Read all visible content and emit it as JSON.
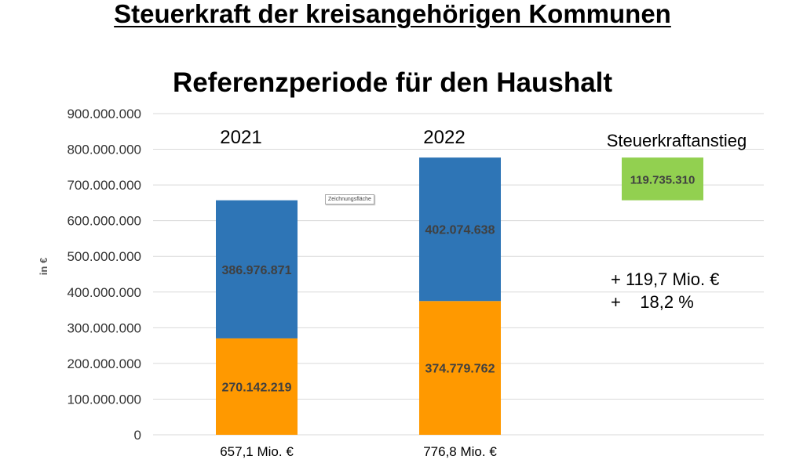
{
  "title": "Steuerkraft der kreisangehörigen Kommunen",
  "subtitle": "Referenzperiode für den Haushalt",
  "tooltip": "Zeichnungsfläche",
  "increase_label": "Steuerkraftanstieg",
  "increase_value": "119.735.310",
  "note_line1": "+ 119,7 Mio. €",
  "note_line2": "+    18,2 %",
  "colors": {
    "orange": "#FF9900",
    "blue": "#2E75B6",
    "green": "#92D050",
    "grid": "#D9D9D9",
    "label": "#404040"
  },
  "chart_data": {
    "type": "bar",
    "stacked": true,
    "categories": [
      "2021",
      "2022"
    ],
    "category_bottom_labels": [
      "657,1 Mio. €",
      "776,8 Mio. €"
    ],
    "series": [
      {
        "color": "#FF9900",
        "values": [
          270142219,
          374779762
        ],
        "labels": [
          "270.142.219",
          "374.779.762"
        ]
      },
      {
        "color": "#2E75B6",
        "values": [
          386976871,
          402074638
        ],
        "labels": [
          "386.976.871",
          "402.074.638"
        ]
      }
    ],
    "increase_bar": {
      "from": 657119090,
      "to": 776854400,
      "label": "119.735.310"
    },
    "ylabel": "in €",
    "ylim": [
      0,
      900000000
    ],
    "yticks": [
      0,
      100000000,
      200000000,
      300000000,
      400000000,
      500000000,
      600000000,
      700000000,
      800000000,
      900000000
    ],
    "ytick_labels": [
      "0",
      "100.000.000",
      "200.000.000",
      "300.000.000",
      "400.000.000",
      "500.000.000",
      "600.000.000",
      "700.000.000",
      "800.000.000",
      "900.000.000"
    ],
    "grid": true,
    "legend": "none"
  }
}
